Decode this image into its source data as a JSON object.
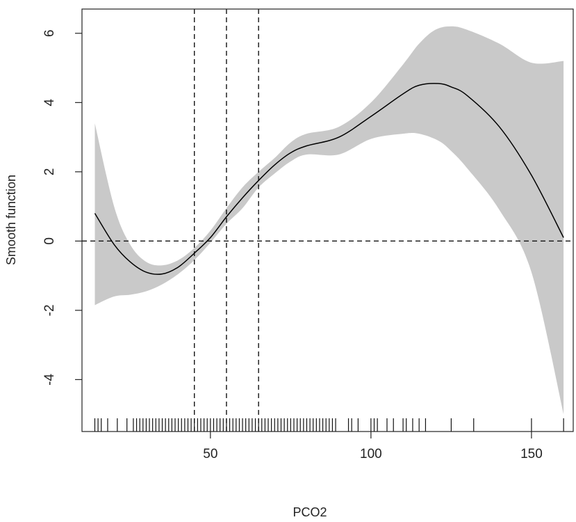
{
  "chart_data": {
    "type": "line",
    "xlabel": "PCO2",
    "ylabel": "Smooth function",
    "xlim": [
      10,
      163
    ],
    "ylim": [
      -5.5,
      6.7
    ],
    "x_ticks": [
      50,
      100,
      150
    ],
    "x_tick_labels": [
      "50",
      "100",
      "150"
    ],
    "y_ticks": [
      -4,
      -2,
      0,
      2,
      4,
      6
    ],
    "y_tick_labels": [
      "-4",
      "-2",
      "0",
      "2",
      "4",
      "6"
    ],
    "grid": false,
    "legend": "none",
    "reference_lines": {
      "horizontal": [
        0
      ],
      "vertical": [
        45,
        55,
        65
      ]
    },
    "series": [
      {
        "role": "fit",
        "color": "#000000",
        "x": [
          14,
          20,
          25,
          30,
          35,
          40,
          45,
          50,
          55,
          60,
          65,
          70,
          75,
          80,
          90,
          100,
          110,
          115,
          121,
          125,
          130,
          140,
          150,
          160
        ],
        "y": [
          0.8,
          -0.1,
          -0.6,
          -0.9,
          -0.95,
          -0.75,
          -0.35,
          0.1,
          0.7,
          1.25,
          1.75,
          2.2,
          2.55,
          2.75,
          3.0,
          3.6,
          4.25,
          4.5,
          4.55,
          4.45,
          4.2,
          3.3,
          1.9,
          0.1
        ]
      },
      {
        "role": "ci-upper",
        "color": "#c9c9c9",
        "x": [
          14,
          20,
          25,
          30,
          35,
          40,
          45,
          50,
          55,
          60,
          65,
          70,
          75,
          80,
          90,
          100,
          110,
          115,
          120,
          125,
          130,
          140,
          150,
          160
        ],
        "y": [
          3.4,
          1.0,
          -0.1,
          -0.6,
          -0.7,
          -0.55,
          -0.2,
          0.3,
          0.95,
          1.55,
          2.0,
          2.4,
          2.85,
          3.1,
          3.3,
          4.0,
          5.1,
          5.7,
          6.1,
          6.2,
          6.1,
          5.7,
          5.15,
          5.2
        ]
      },
      {
        "role": "ci-lower",
        "color": "#c9c9c9",
        "x": [
          14,
          20,
          25,
          30,
          35,
          40,
          45,
          50,
          55,
          60,
          65,
          70,
          75,
          80,
          90,
          100,
          110,
          115,
          121,
          125,
          130,
          140,
          150,
          160
        ],
        "y": [
          -1.85,
          -1.6,
          -1.55,
          -1.45,
          -1.25,
          -0.95,
          -0.55,
          -0.05,
          0.5,
          0.95,
          1.55,
          1.95,
          2.3,
          2.5,
          2.5,
          2.95,
          3.1,
          3.1,
          2.9,
          2.6,
          2.1,
          0.9,
          -0.9,
          -5.0
        ]
      }
    ],
    "rug": [
      14,
      15,
      16,
      18,
      21,
      24,
      26,
      27,
      28,
      29,
      30,
      31,
      32,
      33,
      34,
      35,
      36,
      37,
      38,
      39,
      40,
      41,
      42,
      43,
      44,
      45,
      46,
      47,
      48,
      49,
      50,
      51,
      52,
      53,
      54,
      55,
      56,
      57,
      58,
      59,
      60,
      61,
      62,
      63,
      64,
      65,
      66,
      67,
      68,
      69,
      70,
      71,
      72,
      73,
      74,
      75,
      76,
      77,
      78,
      79,
      80,
      81,
      82,
      83,
      84,
      85,
      86,
      87,
      88,
      89,
      93,
      94,
      96,
      100,
      101,
      102,
      105,
      107,
      110,
      111,
      113,
      115,
      117,
      125,
      132,
      150,
      160
    ]
  }
}
